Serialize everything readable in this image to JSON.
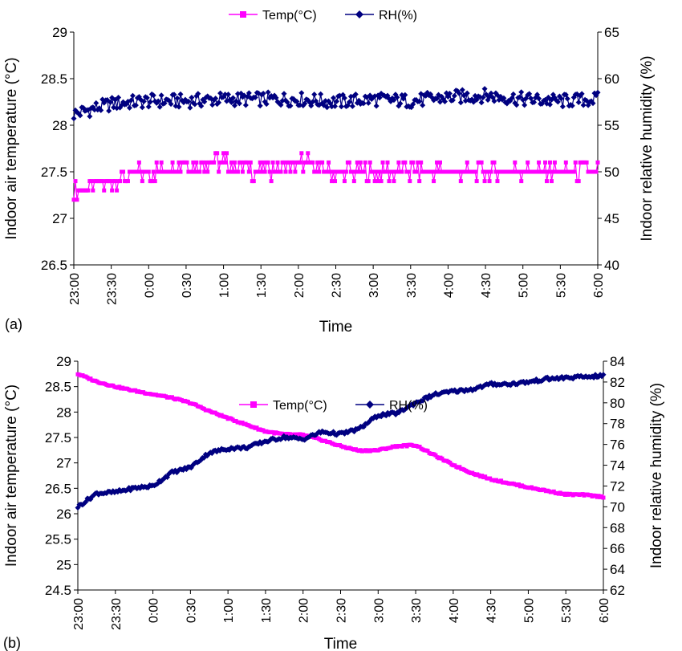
{
  "chart_data": [
    {
      "type": "line",
      "panel_label": "(a)",
      "xlabel": "Time",
      "ylabel_left": "Indoor air temperature (°C)",
      "ylabel_right": "Indoor relative humidity (%)",
      "x_ticks": [
        "23:00",
        "23:30",
        "0:00",
        "0:30",
        "1:00",
        "1:30",
        "2:00",
        "2:30",
        "3:00",
        "3:30",
        "4:00",
        "4:30",
        "5:00",
        "5:30",
        "6:00"
      ],
      "ylim_left": [
        26.5,
        29
      ],
      "yticks_left": [
        "26.5",
        "27",
        "27.5",
        "28",
        "28.5",
        "29"
      ],
      "ylim_right": [
        40,
        65
      ],
      "yticks_right": [
        "40",
        "45",
        "50",
        "55",
        "60",
        "65"
      ],
      "legend_position": "top-center",
      "series": [
        {
          "name": "Temp(°C)",
          "axis": "left",
          "color": "#ff00ff",
          "marker": "square",
          "x_hours": [
            0,
            0.5,
            1,
            1.5,
            2,
            2.5,
            3,
            3.5,
            4,
            4.5,
            5,
            5.5,
            6,
            6.5,
            7
          ],
          "y": [
            27.3,
            27.4,
            27.5,
            27.6,
            27.6,
            27.5,
            27.6,
            27.5,
            27.5,
            27.5,
            27.5,
            27.5,
            27.5,
            27.5,
            27.5
          ]
        },
        {
          "name": "RH(%)",
          "axis": "right",
          "color": "#000080",
          "marker": "diamond",
          "x_hours": [
            0,
            0.5,
            1,
            1.5,
            2,
            2.5,
            3,
            3.5,
            4,
            4.5,
            5,
            5.5,
            6,
            6.5,
            7
          ],
          "y": [
            56.2,
            57.3,
            57.6,
            57.6,
            57.8,
            57.8,
            57.8,
            57.5,
            57.8,
            57.6,
            58.0,
            58.2,
            57.8,
            57.6,
            57.8
          ]
        }
      ]
    },
    {
      "type": "line",
      "panel_label": "(b)",
      "xlabel": "Time",
      "ylabel_left": "Indoor air temperature (°C)",
      "ylabel_right": "Indoor relative humidity (%)",
      "x_ticks": [
        "23:00",
        "23:30",
        "0:00",
        "0:30",
        "1:00",
        "1:30",
        "2:00",
        "2:30",
        "3:00",
        "3:30",
        "4:00",
        "4:30",
        "5:00",
        "5:30",
        "6:00"
      ],
      "ylim_left": [
        24.5,
        29
      ],
      "yticks_left": [
        "24.5",
        "25",
        "25.5",
        "26",
        "26.5",
        "27",
        "27.5",
        "28",
        "28.5",
        "29"
      ],
      "ylim_right": [
        62,
        84
      ],
      "yticks_right": [
        "62",
        "64",
        "66",
        "68",
        "70",
        "72",
        "74",
        "76",
        "78",
        "80",
        "82",
        "84"
      ],
      "legend_position": "top-center",
      "series": [
        {
          "name": "Temp(°C)",
          "axis": "left",
          "color": "#ff00ff",
          "marker": "square",
          "x_hours": [
            0,
            0.25,
            0.5,
            0.75,
            1,
            1.25,
            1.5,
            1.75,
            2,
            2.25,
            2.5,
            2.75,
            3,
            3.25,
            3.5,
            3.75,
            4,
            4.25,
            4.5,
            4.75,
            5,
            5.25,
            5.5,
            5.75,
            6,
            6.25,
            6.5,
            6.75,
            7
          ],
          "y": [
            28.75,
            28.6,
            28.5,
            28.42,
            28.35,
            28.28,
            28.18,
            28.02,
            27.88,
            27.75,
            27.62,
            27.56,
            27.55,
            27.45,
            27.33,
            27.24,
            27.25,
            27.33,
            27.35,
            27.15,
            26.96,
            26.8,
            26.68,
            26.6,
            26.52,
            26.45,
            26.38,
            26.37,
            26.33
          ]
        },
        {
          "name": "RH(%)",
          "axis": "right",
          "color": "#000080",
          "marker": "diamond",
          "x_hours": [
            0,
            0.25,
            0.5,
            0.75,
            1,
            1.25,
            1.5,
            1.75,
            2,
            2.25,
            2.5,
            2.75,
            3,
            3.25,
            3.5,
            3.75,
            4,
            4.25,
            4.5,
            4.75,
            5,
            5.25,
            5.5,
            5.75,
            6,
            6.25,
            6.5,
            6.75,
            7
          ],
          "y": [
            70.0,
            71.3,
            71.4,
            71.8,
            72.0,
            73.3,
            73.8,
            75.2,
            75.6,
            75.7,
            76.3,
            76.7,
            76.5,
            77.2,
            77.0,
            77.5,
            78.8,
            79.0,
            80.0,
            80.8,
            81.1,
            81.3,
            81.8,
            81.8,
            82.0,
            82.3,
            82.4,
            82.5,
            82.6
          ]
        }
      ]
    }
  ]
}
